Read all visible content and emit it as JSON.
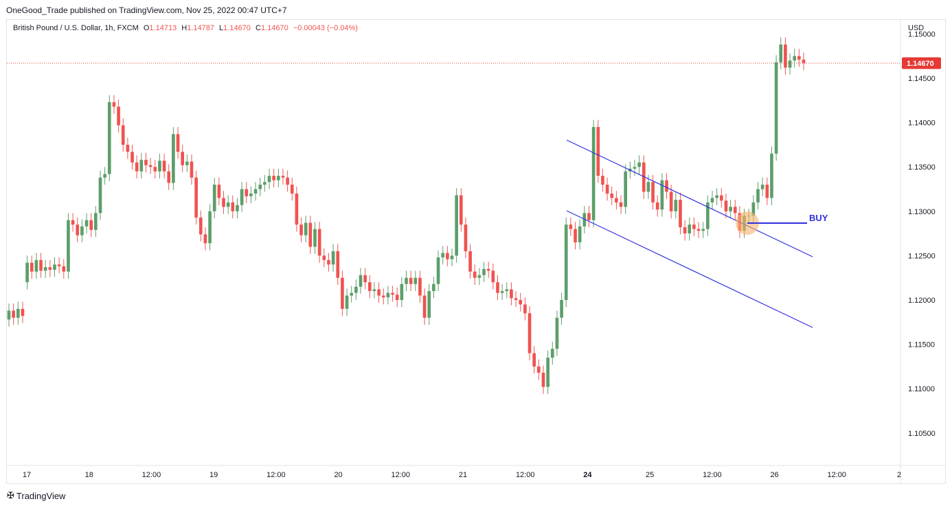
{
  "header": {
    "published_line": "OneGood_Trade published on TradingView.com, Nov 25, 2022 00:47 UTC+7"
  },
  "legend": {
    "symbol": "British Pound / U.S. Dollar, 1h, FXCM",
    "open_label": "O",
    "open": "1.14713",
    "high_label": "H",
    "high": "1.14787",
    "low_label": "L",
    "low": "1.14670",
    "close_label": "C",
    "close": "1.14670",
    "change": "−0.00043 (−0.04%)"
  },
  "footer": {
    "brand": "TradingView"
  },
  "colors": {
    "up": "#26a69a",
    "up_fill": "#5c9e6a",
    "down": "#ef5350",
    "line": "#2f2fe0",
    "price": "#e53935"
  },
  "chart_data": {
    "type": "candlestick",
    "y_unit": "USD",
    "ylim": [
      1.1015,
      1.1515
    ],
    "y_ticks": [
      "1.15000",
      "1.14500",
      "1.14000",
      "1.13500",
      "1.13000",
      "1.12500",
      "1.12000",
      "1.11500",
      "1.11000",
      "1.10500"
    ],
    "x_ticks": [
      "17",
      "18",
      "12:00",
      "19",
      "12:00",
      "20",
      "12:00",
      "21",
      "12:00",
      "24",
      "25",
      "12:00",
      "26",
      "12:00",
      "2"
    ],
    "x_tick_bold": [
      false,
      false,
      false,
      false,
      false,
      false,
      false,
      false,
      false,
      true,
      false,
      false,
      false,
      false,
      false
    ],
    "last_price": "1.14670",
    "annotation": "BUY",
    "candles": [
      [
        1.1178,
        1.1188
      ],
      [
        1.1188,
        1.118
      ],
      [
        1.118,
        1.119
      ],
      [
        1.119,
        1.1182
      ],
      [
        1.122,
        1.1242
      ],
      [
        1.1242,
        1.1232
      ],
      [
        1.1232,
        1.1245
      ],
      [
        1.1245,
        1.1233
      ],
      [
        1.1233,
        1.1237
      ],
      [
        1.1237,
        1.1234
      ],
      [
        1.1234,
        1.124
      ],
      [
        1.124,
        1.1238
      ],
      [
        1.1238,
        1.1232
      ],
      [
        1.1232,
        1.129
      ],
      [
        1.129,
        1.1285
      ],
      [
        1.1285,
        1.1273
      ],
      [
        1.1273,
        1.1283
      ],
      [
        1.1283,
        1.129
      ],
      [
        1.129,
        1.1279
      ],
      [
        1.1279,
        1.1298
      ],
      [
        1.1298,
        1.1338
      ],
      [
        1.1338,
        1.1342
      ],
      [
        1.1342,
        1.1423
      ],
      [
        1.1423,
        1.1418
      ],
      [
        1.1418,
        1.1397
      ],
      [
        1.1397,
        1.1375
      ],
      [
        1.1375,
        1.1367
      ],
      [
        1.1367,
        1.1355
      ],
      [
        1.1355,
        1.1345
      ],
      [
        1.1345,
        1.1358
      ],
      [
        1.1358,
        1.1352
      ],
      [
        1.1352,
        1.135
      ],
      [
        1.135,
        1.1345
      ],
      [
        1.1345,
        1.1357
      ],
      [
        1.1357,
        1.1345
      ],
      [
        1.1345,
        1.1332
      ],
      [
        1.1332,
        1.1387
      ],
      [
        1.1387,
        1.1367
      ],
      [
        1.1367,
        1.1352
      ],
      [
        1.1352,
        1.1356
      ],
      [
        1.1356,
        1.1338
      ],
      [
        1.1338,
        1.1293
      ],
      [
        1.1293,
        1.1274
      ],
      [
        1.1274,
        1.1264
      ],
      [
        1.1264,
        1.13
      ],
      [
        1.13,
        1.133
      ],
      [
        1.133,
        1.1315
      ],
      [
        1.1315,
        1.1305
      ],
      [
        1.1305,
        1.131
      ],
      [
        1.131,
        1.13
      ],
      [
        1.13,
        1.1307
      ],
      [
        1.1307,
        1.1325
      ],
      [
        1.1325,
        1.1317
      ],
      [
        1.1317,
        1.132
      ],
      [
        1.132,
        1.1325
      ],
      [
        1.1325,
        1.133
      ],
      [
        1.133,
        1.1333
      ],
      [
        1.1333,
        1.134
      ],
      [
        1.134,
        1.1335
      ],
      [
        1.1335,
        1.134
      ],
      [
        1.134,
        1.1338
      ],
      [
        1.1338,
        1.133
      ],
      [
        1.133,
        1.132
      ],
      [
        1.132,
        1.1285
      ],
      [
        1.1285,
        1.1273
      ],
      [
        1.1273,
        1.1287
      ],
      [
        1.1287,
        1.126
      ],
      [
        1.126,
        1.128
      ],
      [
        1.128,
        1.125
      ],
      [
        1.125,
        1.1245
      ],
      [
        1.1245,
        1.124
      ],
      [
        1.124,
        1.1255
      ],
      [
        1.1255,
        1.1225
      ],
      [
        1.1225,
        1.119
      ],
      [
        1.119,
        1.1205
      ],
      [
        1.1205,
        1.1208
      ],
      [
        1.1208,
        1.1215
      ],
      [
        1.1215,
        1.1228
      ],
      [
        1.1228,
        1.122
      ],
      [
        1.122,
        1.121
      ],
      [
        1.121,
        1.1212
      ],
      [
        1.1212,
        1.1205
      ],
      [
        1.1205,
        1.1203
      ],
      [
        1.1203,
        1.1208
      ],
      [
        1.1208,
        1.1206
      ],
      [
        1.1206,
        1.12
      ],
      [
        1.12,
        1.1218
      ],
      [
        1.1218,
        1.1225
      ],
      [
        1.1225,
        1.1218
      ],
      [
        1.1218,
        1.1225
      ],
      [
        1.1225,
        1.1205
      ],
      [
        1.1205,
        1.118
      ],
      [
        1.118,
        1.121
      ],
      [
        1.121,
        1.1218
      ],
      [
        1.1218,
        1.1248
      ],
      [
        1.1248,
        1.1253
      ],
      [
        1.1253,
        1.1246
      ],
      [
        1.1246,
        1.125
      ],
      [
        1.125,
        1.1318
      ],
      [
        1.1318,
        1.1285
      ],
      [
        1.1285,
        1.1255
      ],
      [
        1.1255,
        1.1232
      ],
      [
        1.1232,
        1.1225
      ],
      [
        1.1225,
        1.1228
      ],
      [
        1.1228,
        1.1235
      ],
      [
        1.1235,
        1.1233
      ],
      [
        1.1233,
        1.122
      ],
      [
        1.122,
        1.1208
      ],
      [
        1.1208,
        1.121
      ],
      [
        1.121,
        1.1212
      ],
      [
        1.1212,
        1.1202
      ],
      [
        1.1202,
        1.12
      ],
      [
        1.12,
        1.1195
      ],
      [
        1.1195,
        1.1185
      ],
      [
        1.1185,
        1.114
      ],
      [
        1.114,
        1.1125
      ],
      [
        1.1125,
        1.1118
      ],
      [
        1.1118,
        1.1102
      ],
      [
        1.1102,
        1.1135
      ],
      [
        1.1135,
        1.1145
      ],
      [
        1.1145,
        1.118
      ],
      [
        1.118,
        1.12
      ],
      [
        1.12,
        1.1285
      ],
      [
        1.1285,
        1.128
      ],
      [
        1.128,
        1.1265
      ],
      [
        1.1265,
        1.1283
      ],
      [
        1.1283,
        1.1298
      ],
      [
        1.1298,
        1.129
      ],
      [
        1.129,
        1.1395
      ],
      [
        1.1395,
        1.134
      ],
      [
        1.134,
        1.133
      ],
      [
        1.133,
        1.132
      ],
      [
        1.132,
        1.1315
      ],
      [
        1.1315,
        1.131
      ],
      [
        1.131,
        1.1305
      ],
      [
        1.1305,
        1.1345
      ],
      [
        1.1345,
        1.1348
      ],
      [
        1.1348,
        1.135
      ],
      [
        1.135,
        1.1355
      ],
      [
        1.1355,
        1.1322
      ],
      [
        1.1322,
        1.1333
      ],
      [
        1.1333,
        1.131
      ],
      [
        1.131,
        1.1302
      ],
      [
        1.1302,
        1.1335
      ],
      [
        1.1335,
        1.1322
      ],
      [
        1.1322,
        1.13
      ],
      [
        1.13,
        1.1313
      ],
      [
        1.1313,
        1.1282
      ],
      [
        1.1282,
        1.1275
      ],
      [
        1.1275,
        1.1285
      ],
      [
        1.1285,
        1.128
      ],
      [
        1.128,
        1.1278
      ],
      [
        1.1278,
        1.128
      ],
      [
        1.128,
        1.131
      ],
      [
        1.131,
        1.1315
      ],
      [
        1.1315,
        1.1318
      ],
      [
        1.1318,
        1.1312
      ],
      [
        1.1312,
        1.13
      ],
      [
        1.13,
        1.1305
      ],
      [
        1.1305,
        1.1298
      ],
      [
        1.1298,
        1.1278
      ],
      [
        1.1278,
        1.1295
      ],
      [
        1.1295,
        1.1295
      ],
      [
        1.1295,
        1.131
      ],
      [
        1.131,
        1.1325
      ],
      [
        1.1325,
        1.133
      ],
      [
        1.133,
        1.1315
      ],
      [
        1.1315,
        1.1365
      ],
      [
        1.1365,
        1.1468
      ],
      [
        1.1468,
        1.1488
      ],
      [
        1.1488,
        1.1462
      ],
      [
        1.1462,
        1.147
      ],
      [
        1.147,
        1.1475
      ],
      [
        1.1475,
        1.1471
      ],
      [
        1.1471,
        1.1467
      ]
    ]
  }
}
